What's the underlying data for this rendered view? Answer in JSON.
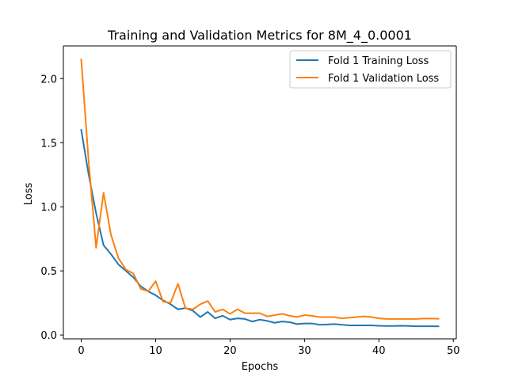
{
  "chart_data": {
    "type": "line",
    "title": "Training and Validation Metrics for 8M_4_0.0001",
    "xlabel": "Epochs",
    "ylabel": "Loss",
    "xlim": [
      -2.4,
      50.4
    ],
    "ylim": [
      -0.03,
      2.255
    ],
    "xticks": [
      0,
      10,
      20,
      30,
      40,
      50
    ],
    "xtick_labels": [
      "0",
      "10",
      "20",
      "30",
      "40",
      "50"
    ],
    "yticks": [
      0.0,
      0.5,
      1.0,
      1.5,
      2.0
    ],
    "ytick_labels": [
      "0.0",
      "0.5",
      "1.0",
      "1.5",
      "2.0"
    ],
    "grid": false,
    "legend_position": "top-right",
    "x": [
      0,
      1,
      2,
      3,
      4,
      5,
      6,
      7,
      8,
      9,
      10,
      11,
      12,
      13,
      14,
      15,
      16,
      17,
      18,
      19,
      20,
      21,
      22,
      23,
      24,
      25,
      26,
      27,
      28,
      29,
      30,
      31,
      32,
      33,
      34,
      35,
      36,
      37,
      38,
      39,
      40,
      41,
      42,
      43,
      44,
      45,
      46,
      47,
      48
    ],
    "series": [
      {
        "name": "Fold 1 Training Loss",
        "color": "#1f77b4",
        "values": [
          1.6,
          1.25,
          0.95,
          0.7,
          0.63,
          0.55,
          0.5,
          0.45,
          0.38,
          0.34,
          0.31,
          0.27,
          0.24,
          0.2,
          0.21,
          0.19,
          0.14,
          0.18,
          0.13,
          0.15,
          0.12,
          0.13,
          0.125,
          0.105,
          0.12,
          0.11,
          0.095,
          0.105,
          0.1,
          0.085,
          0.09,
          0.09,
          0.08,
          0.082,
          0.085,
          0.08,
          0.075,
          0.075,
          0.075,
          0.075,
          0.072,
          0.07,
          0.07,
          0.072,
          0.07,
          0.068,
          0.068,
          0.068,
          0.067
        ]
      },
      {
        "name": "Fold 1 Validation Loss",
        "color": "#ff7f0e",
        "values": [
          2.15,
          1.35,
          0.68,
          1.11,
          0.78,
          0.6,
          0.51,
          0.48,
          0.36,
          0.34,
          0.42,
          0.26,
          0.25,
          0.4,
          0.21,
          0.2,
          0.24,
          0.265,
          0.18,
          0.2,
          0.165,
          0.2,
          0.17,
          0.17,
          0.17,
          0.145,
          0.155,
          0.165,
          0.15,
          0.14,
          0.155,
          0.15,
          0.14,
          0.14,
          0.14,
          0.13,
          0.135,
          0.14,
          0.145,
          0.14,
          0.13,
          0.125,
          0.125,
          0.125,
          0.125,
          0.125,
          0.128,
          0.128,
          0.127
        ]
      }
    ]
  }
}
